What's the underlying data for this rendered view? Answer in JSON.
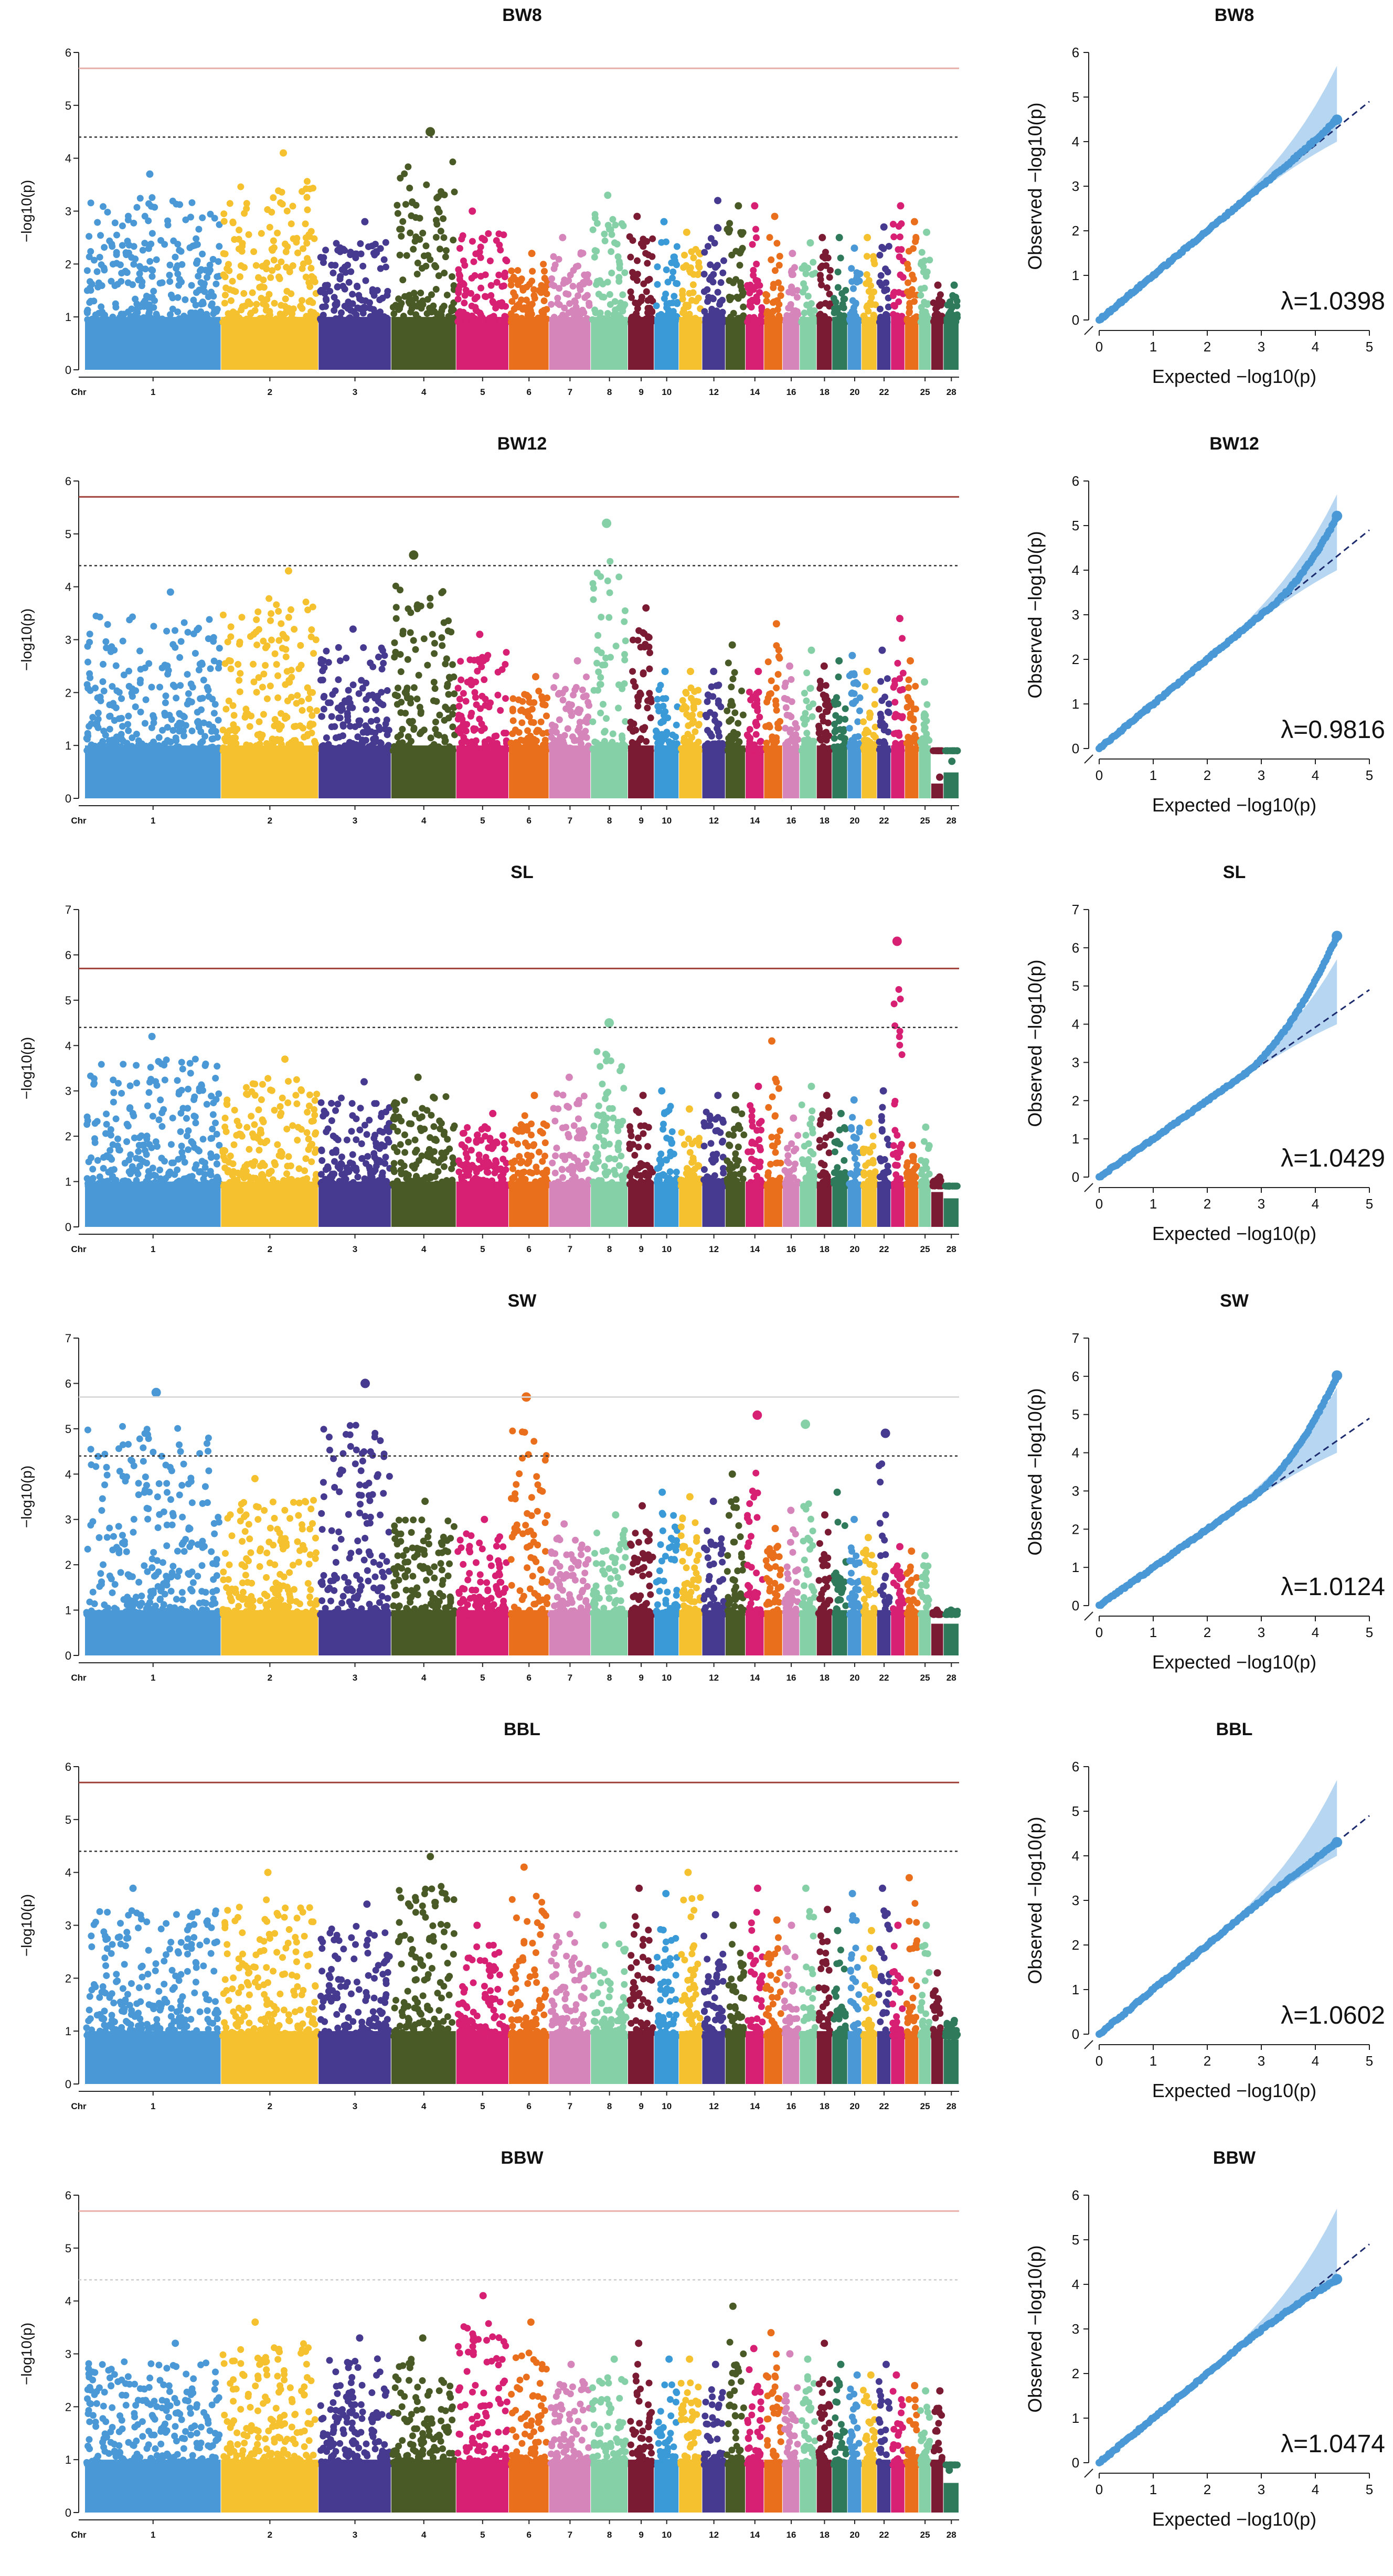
{
  "figure": {
    "manhattan_ylabel": "−log10(p)",
    "qq_xlabel": "Expected  −log10(p)",
    "qq_ylabel": "Observed  −log10(p)",
    "chr_axis_label": "Chr"
  },
  "chart_data": [
    {
      "type": "scatter",
      "subtype": "manhattan",
      "title": "BW8",
      "ylabel": "−log10(p)",
      "xlabel": "Chr",
      "ylim": [
        0,
        6
      ],
      "yticks": [
        0,
        1,
        2,
        3,
        4,
        5,
        6
      ],
      "chromosome_labels": [
        "Chr",
        "1",
        "2",
        "3",
        "4",
        "5",
        "6",
        "7",
        "8",
        "9",
        "10",
        "12",
        "14",
        "16",
        "18",
        "20",
        "22",
        "25",
        "28"
      ],
      "thresholds": [
        {
          "value": 5.7,
          "style": "solid",
          "color": "#e8b0a8"
        },
        {
          "value": 4.4,
          "style": "dotted",
          "color": "#333333"
        }
      ],
      "chromosome_peaks": [
        3.7,
        4.1,
        2.8,
        4.5,
        3.0,
        2.2,
        2.5,
        3.3,
        2.9,
        2.8,
        2.6,
        3.2,
        3.1,
        3.1,
        2.9,
        2.2,
        2.4,
        2.5,
        2.5,
        2.3,
        2.5,
        2.7,
        3.1,
        2.8,
        2.6,
        1.6,
        1.6
      ]
    },
    {
      "type": "scatter",
      "subtype": "qq",
      "title": "BW8",
      "xlabel": "Expected  −log10(p)",
      "ylabel": "Observed  −log10(p)",
      "xlim": [
        0,
        5
      ],
      "ylim": [
        0,
        6
      ],
      "xticks": [
        0,
        1,
        2,
        3,
        4,
        5
      ],
      "yticks": [
        0,
        1,
        2,
        3,
        4,
        5,
        6
      ],
      "lambda_label": "λ=1.0398",
      "max_expected": 4.4,
      "max_observed": 4.5,
      "departure_start": 3.3
    },
    {
      "type": "scatter",
      "subtype": "manhattan",
      "title": "BW12",
      "ylabel": "−log10(p)",
      "xlabel": "Chr",
      "ylim": [
        0,
        6
      ],
      "yticks": [
        0,
        1,
        2,
        3,
        4,
        5,
        6
      ],
      "chromosome_labels": [
        "Chr",
        "1",
        "2",
        "3",
        "4",
        "5",
        "6",
        "7",
        "8",
        "9",
        "10",
        "12",
        "14",
        "16",
        "18",
        "20",
        "22",
        "25",
        "28"
      ],
      "thresholds": [
        {
          "value": 5.7,
          "style": "solid",
          "color": "#a0403a"
        },
        {
          "value": 4.4,
          "style": "dotted",
          "color": "#333333"
        }
      ],
      "chromosome_peaks": [
        3.9,
        4.3,
        3.2,
        4.6,
        3.1,
        2.3,
        2.6,
        5.2,
        3.6,
        2.4,
        2.4,
        2.4,
        2.9,
        2.4,
        3.3,
        2.5,
        2.8,
        2.5,
        2.6,
        2.7,
        2.4,
        2.8,
        3.4,
        2.6,
        2.2,
        0.4,
        0.7
      ]
    },
    {
      "type": "scatter",
      "subtype": "qq",
      "title": "BW12",
      "xlabel": "Expected  −log10(p)",
      "ylabel": "Observed  −log10(p)",
      "xlim": [
        0,
        5
      ],
      "ylim": [
        0,
        6
      ],
      "xticks": [
        0,
        1,
        2,
        3,
        4,
        5
      ],
      "yticks": [
        0,
        1,
        2,
        3,
        4,
        5,
        6
      ],
      "lambda_label": "λ=0.9816",
      "max_expected": 4.4,
      "max_observed": 5.2,
      "departure_start": 3.2
    },
    {
      "type": "scatter",
      "subtype": "manhattan",
      "title": "SL",
      "ylabel": "−log10(p)",
      "xlabel": "Chr",
      "ylim": [
        0,
        7
      ],
      "yticks": [
        0,
        1,
        2,
        3,
        4,
        5,
        6,
        7
      ],
      "chromosome_labels": [
        "Chr",
        "1",
        "2",
        "3",
        "4",
        "5",
        "6",
        "7",
        "8",
        "9",
        "10",
        "12",
        "14",
        "16",
        "18",
        "20",
        "22",
        "25",
        "28"
      ],
      "thresholds": [
        {
          "value": 5.7,
          "style": "solid",
          "color": "#a0403a"
        },
        {
          "value": 4.4,
          "style": "dotted",
          "color": "#333333"
        }
      ],
      "chromosome_peaks": [
        4.2,
        3.7,
        3.2,
        3.3,
        2.5,
        2.9,
        3.3,
        4.5,
        2.9,
        3.0,
        2.6,
        2.9,
        2.9,
        3.1,
        4.1,
        2.4,
        3.1,
        2.9,
        2.5,
        2.8,
        2.3,
        3.0,
        6.3,
        1.8,
        2.2,
        1.1,
        0.9
      ]
    },
    {
      "type": "scatter",
      "subtype": "qq",
      "title": "SL",
      "xlabel": "Expected  −log10(p)",
      "ylabel": "Observed  −log10(p)",
      "xlim": [
        0,
        5
      ],
      "ylim": [
        0,
        7
      ],
      "xticks": [
        0,
        1,
        2,
        3,
        4,
        5
      ],
      "yticks": [
        0,
        1,
        2,
        3,
        4,
        5,
        6,
        7
      ],
      "lambda_label": "λ=1.0429",
      "max_expected": 4.4,
      "max_observed": 6.3,
      "departure_start": 2.6
    },
    {
      "type": "scatter",
      "subtype": "manhattan",
      "title": "SW",
      "ylabel": "−log10(p)",
      "xlabel": "Chr",
      "ylim": [
        0,
        7
      ],
      "yticks": [
        0,
        1,
        2,
        3,
        4,
        5,
        6,
        7
      ],
      "chromosome_labels": [
        "Chr",
        "1",
        "2",
        "3",
        "4",
        "5",
        "6",
        "7",
        "8",
        "9",
        "10",
        "12",
        "14",
        "16",
        "18",
        "20",
        "22",
        "25",
        "28"
      ],
      "thresholds": [
        {
          "value": 5.7,
          "style": "solid",
          "color": "#d9d9d9"
        },
        {
          "value": 4.4,
          "style": "dotted",
          "color": "#333333"
        }
      ],
      "chromosome_peaks": [
        5.8,
        3.9,
        6.0,
        3.4,
        3.0,
        5.7,
        2.9,
        3.1,
        3.3,
        3.6,
        3.5,
        3.4,
        4.0,
        5.3,
        2.8,
        3.2,
        5.1,
        3.1,
        3.6,
        3.0,
        2.6,
        4.9,
        2.4,
        2.3,
        2.2,
        1.0,
        1.0
      ]
    },
    {
      "type": "scatter",
      "subtype": "qq",
      "title": "SW",
      "xlabel": "Expected  −log10(p)",
      "ylabel": "Observed  −log10(p)",
      "xlim": [
        0,
        5
      ],
      "ylim": [
        0,
        7
      ],
      "xticks": [
        0,
        1,
        2,
        3,
        4,
        5
      ],
      "yticks": [
        0,
        1,
        2,
        3,
        4,
        5,
        6,
        7
      ],
      "lambda_label": "λ=1.0124",
      "max_expected": 4.4,
      "max_observed": 6.0,
      "departure_start": 2.8
    },
    {
      "type": "scatter",
      "subtype": "manhattan",
      "title": "BBL",
      "ylabel": "−log10(p)",
      "xlabel": "Chr",
      "ylim": [
        0,
        6
      ],
      "yticks": [
        0,
        1,
        2,
        3,
        4,
        5,
        6
      ],
      "chromosome_labels": [
        "Chr",
        "1",
        "2",
        "3",
        "4",
        "5",
        "6",
        "7",
        "8",
        "9",
        "10",
        "12",
        "14",
        "16",
        "18",
        "20",
        "22",
        "25",
        "28"
      ],
      "thresholds": [
        {
          "value": 5.7,
          "style": "solid",
          "color": "#a0403a"
        },
        {
          "value": 4.4,
          "style": "dotted",
          "color": "#333333"
        }
      ],
      "chromosome_peaks": [
        3.7,
        4.0,
        3.4,
        4.3,
        3.0,
        4.1,
        3.2,
        3.0,
        3.7,
        3.6,
        4.0,
        3.2,
        3.0,
        3.7,
        3.1,
        3.0,
        3.7,
        3.3,
        2.9,
        3.6,
        2.9,
        3.7,
        3.0,
        3.9,
        3.0,
        2.1,
        1.2
      ]
    },
    {
      "type": "scatter",
      "subtype": "qq",
      "title": "BBL",
      "xlabel": "Expected  −log10(p)",
      "ylabel": "Observed  −log10(p)",
      "xlim": [
        0,
        5
      ],
      "ylim": [
        0,
        6
      ],
      "xticks": [
        0,
        1,
        2,
        3,
        4,
        5
      ],
      "yticks": [
        0,
        1,
        2,
        3,
        4,
        5,
        6
      ],
      "lambda_label": "λ=1.0602",
      "max_expected": 4.4,
      "max_observed": 4.3,
      "departure_start": 2.2
    },
    {
      "type": "scatter",
      "subtype": "manhattan",
      "title": "BBW",
      "ylabel": "−log10(p)",
      "xlabel": "Chr",
      "ylim": [
        0,
        6
      ],
      "yticks": [
        0,
        1,
        2,
        3,
        4,
        5,
        6
      ],
      "chromosome_labels": [
        "Chr",
        "1",
        "2",
        "3",
        "4",
        "5",
        "6",
        "7",
        "8",
        "9",
        "10",
        "12",
        "14",
        "16",
        "18",
        "20",
        "22",
        "25",
        "28"
      ],
      "thresholds": [
        {
          "value": 5.7,
          "style": "solid",
          "color": "#e8b0a8"
        },
        {
          "value": 4.4,
          "style": "dotted",
          "color": "#cccccc"
        }
      ],
      "chromosome_peaks": [
        3.2,
        3.6,
        3.3,
        3.3,
        4.1,
        3.6,
        2.8,
        2.9,
        3.2,
        2.9,
        2.9,
        2.8,
        3.9,
        3.1,
        3.4,
        3.0,
        2.9,
        3.2,
        2.8,
        2.6,
        2.6,
        2.8,
        2.6,
        2.4,
        2.3,
        2.3,
        0.8
      ]
    },
    {
      "type": "scatter",
      "subtype": "qq",
      "title": "BBW",
      "xlabel": "Expected  −log10(p)",
      "ylabel": "Observed  −log10(p)",
      "xlim": [
        0,
        5
      ],
      "ylim": [
        0,
        6
      ],
      "xticks": [
        0,
        1,
        2,
        3,
        4,
        5
      ],
      "yticks": [
        0,
        1,
        2,
        3,
        4,
        5,
        6
      ],
      "lambda_label": "λ=1.0474",
      "max_expected": 4.4,
      "max_observed": 4.1,
      "departure_start": 2.4
    }
  ],
  "colors": {
    "chromosomes": [
      "#4a98d6",
      "#f5c12e",
      "#453a8f",
      "#4a5a26",
      "#d71f73",
      "#ea6f1c",
      "#d685ba",
      "#86d0a8",
      "#7a1b33",
      "#3a9ad8",
      "#f5c12e",
      "#453a8f",
      "#4a5a26",
      "#d71f73",
      "#ea6f1c",
      "#d685ba",
      "#86d0a8",
      "#7a1b33",
      "#2e7a5a",
      "#4a98d6",
      "#f5c12e",
      "#453a8f",
      "#d71f73",
      "#ea6f1c",
      "#86d0a8",
      "#7a1b33",
      "#2e7a5a"
    ],
    "qq_points": "#4a98d6",
    "qq_band": "#a9cfee",
    "qq_diagonal": "#1c2a6e"
  }
}
